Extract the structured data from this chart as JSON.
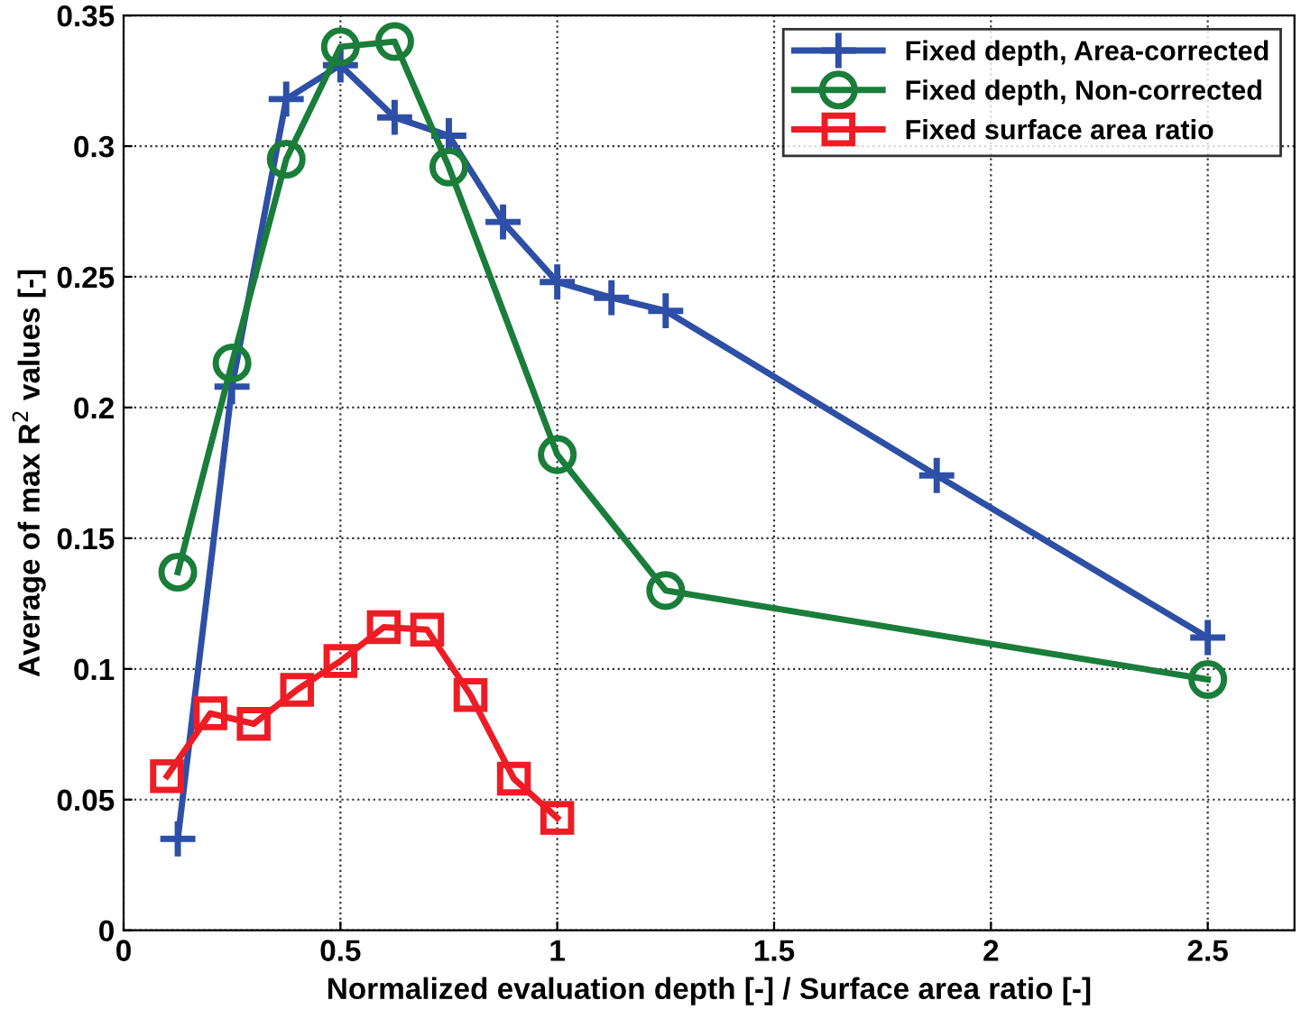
{
  "chart_data": {
    "type": "line",
    "xlabel": "Normalized evaluation depth [-] / Surface area ratio [-]",
    "ylabel": "Average of max R$^{2}$ values [-]",
    "xlim": [
      0,
      2.7
    ],
    "xticks": [
      0,
      0.5,
      1,
      1.5,
      2,
      2.5
    ],
    "ylim": [
      0,
      0.35
    ],
    "yticks": [
      0,
      0.05,
      0.1,
      0.15,
      0.2,
      0.25,
      0.3,
      0.35
    ],
    "grid": true,
    "legend": "top right",
    "line_style": "solid",
    "series": [
      {
        "name": "Fixed depth, Area-corrected",
        "color": "#2e4fa6",
        "marker": "cross",
        "x": [
          0.125,
          0.25,
          0.375,
          0.5,
          0.625,
          0.75,
          0.875,
          1,
          1.125,
          1.25,
          1.875,
          2.5
        ],
        "values": [
          0.035,
          0.208,
          0.318,
          0.331,
          0.311,
          0.304,
          0.271,
          0.248,
          0.242,
          0.237,
          0.174,
          0.112
        ]
      },
      {
        "name": "Fixed depth, Non-corrected",
        "color": "#1a7d3a",
        "marker": "circle",
        "x": [
          0.125,
          0.25,
          0.375,
          0.5,
          0.625,
          0.75,
          1,
          1.25,
          2.5
        ],
        "values": [
          0.137,
          0.217,
          0.295,
          0.338,
          0.34,
          0.292,
          0.182,
          0.13,
          0.096
        ]
      },
      {
        "name": "Fixed surface area ratio",
        "color": "#ee1c24",
        "marker": "square",
        "x": [
          0.1,
          0.2,
          0.3,
          0.4,
          0.5,
          0.6,
          0.7,
          0.8,
          0.9,
          1.0
        ],
        "values": [
          0.059,
          0.083,
          0.079,
          0.092,
          0.103,
          0.116,
          0.115,
          0.09,
          0.058,
          0.043
        ]
      }
    ]
  }
}
